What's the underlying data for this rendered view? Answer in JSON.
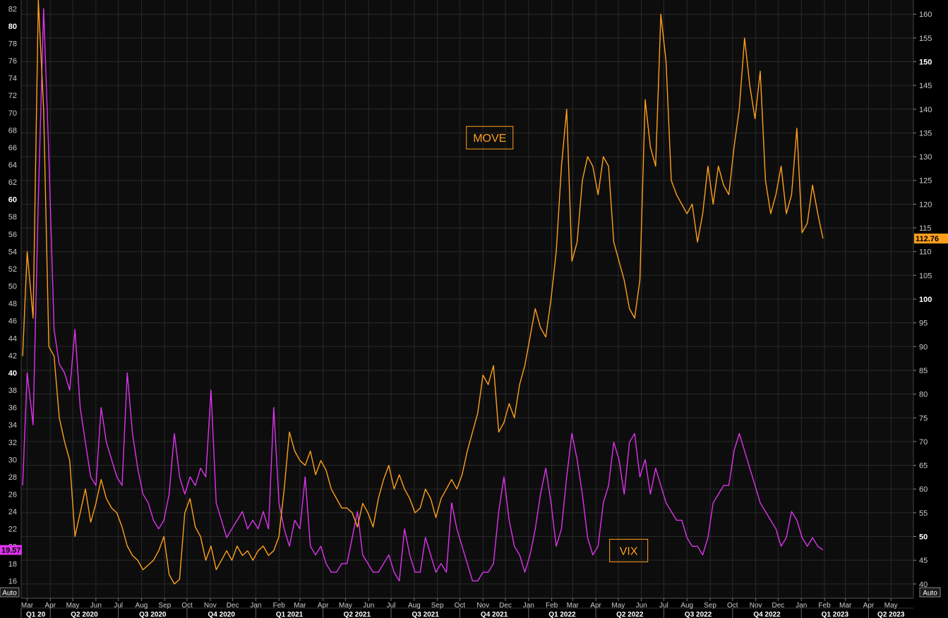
{
  "chart_data": {
    "type": "line",
    "title": "",
    "colors": {
      "vix": "#dd33ee",
      "move": "#ff9f1c",
      "background": "#0d0d0d",
      "grid": "#2a2a2a"
    },
    "left_axis": {
      "ylim": [
        14,
        83
      ],
      "ticks": [
        16,
        18,
        20,
        22,
        24,
        26,
        28,
        30,
        32,
        34,
        36,
        38,
        40,
        42,
        44,
        46,
        48,
        50,
        52,
        54,
        56,
        58,
        60,
        62,
        64,
        66,
        68,
        70,
        72,
        74,
        76,
        78,
        80,
        82
      ],
      "bold_ticks": [
        40,
        60,
        80
      ],
      "last_value_label": "19.57",
      "auto_label": "Auto"
    },
    "right_axis": {
      "ylim": [
        37,
        163
      ],
      "ticks": [
        40,
        45,
        50,
        55,
        60,
        65,
        70,
        75,
        80,
        85,
        90,
        95,
        100,
        105,
        110,
        115,
        120,
        125,
        130,
        135,
        140,
        145,
        150,
        155,
        160
      ],
      "bold_ticks": [
        50,
        100,
        150
      ],
      "last_value_label": "112.76",
      "auto_label": "Auto"
    },
    "x_axis": {
      "months": [
        "Mar",
        "Apr",
        "May",
        "Jun",
        "Jul",
        "Aug",
        "Sep",
        "Oct",
        "Nov",
        "Dec",
        "Jan",
        "Feb",
        "Mar",
        "Apr",
        "May",
        "Jun",
        "Jul",
        "Aug",
        "Sep",
        "Oct",
        "Nov",
        "Dec",
        "Jan",
        "Feb",
        "Mar",
        "Apr",
        "May",
        "Jun",
        "Jul",
        "Aug",
        "Sep",
        "Oct",
        "Nov",
        "Dec",
        "Jan",
        "Feb",
        "Mar",
        "Apr",
        "May"
      ],
      "month_starts": [
        "2020-03",
        "2020-04",
        "2020-05",
        "2020-06",
        "2020-07",
        "2020-08",
        "2020-09",
        "2020-10",
        "2020-11",
        "2020-12",
        "2021-01",
        "2021-02",
        "2021-03",
        "2021-04",
        "2021-05",
        "2021-06",
        "2021-07",
        "2021-08",
        "2021-09",
        "2021-10",
        "2021-11",
        "2021-12",
        "2022-01",
        "2022-02",
        "2022-03",
        "2022-04",
        "2022-05",
        "2022-06",
        "2022-07",
        "2022-08",
        "2022-09",
        "2022-10",
        "2022-11",
        "2022-12",
        "2023-01",
        "2023-02",
        "2023-03",
        "2023-04",
        "2023-05"
      ],
      "quarters": [
        {
          "label": "Q1 20",
          "start": "2020-01"
        },
        {
          "label": "Q2 2020",
          "start": "2020-04"
        },
        {
          "label": "Q3 2020",
          "start": "2020-07"
        },
        {
          "label": "Q4 2020",
          "start": "2020-10"
        },
        {
          "label": "Q1 2021",
          "start": "2021-01"
        },
        {
          "label": "Q2 2021",
          "start": "2021-04"
        },
        {
          "label": "Q3 2021",
          "start": "2021-07"
        },
        {
          "label": "Q4 2021",
          "start": "2021-10"
        },
        {
          "label": "Q1 2022",
          "start": "2022-01"
        },
        {
          "label": "Q2 2022",
          "start": "2022-04"
        },
        {
          "label": "Q3 2022",
          "start": "2022-07"
        },
        {
          "label": "Q4 2022",
          "start": "2022-10"
        },
        {
          "label": "Q1 2023",
          "start": "2023-01"
        },
        {
          "label": "Q2 2023",
          "start": "2023-04"
        }
      ],
      "range": [
        "2020-02-22",
        "2023-05-31"
      ]
    },
    "annotations": [
      {
        "text": "MOVE",
        "series": "move",
        "date": "2021-11-10",
        "value": 134
      },
      {
        "text": "VIX",
        "series": "vix",
        "date": "2022-05-15",
        "value": 19.5
      }
    ],
    "series": [
      {
        "name": "VIX",
        "axis": "left",
        "color": "#dd33ee",
        "x": [
          "2020-02-24",
          "2020-03-01",
          "2020-03-09",
          "2020-03-16",
          "2020-03-23",
          "2020-03-30",
          "2020-04-06",
          "2020-04-13",
          "2020-04-20",
          "2020-04-27",
          "2020-05-04",
          "2020-05-11",
          "2020-05-18",
          "2020-05-25",
          "2020-06-01",
          "2020-06-08",
          "2020-06-15",
          "2020-06-22",
          "2020-06-29",
          "2020-07-06",
          "2020-07-13",
          "2020-07-20",
          "2020-07-27",
          "2020-08-03",
          "2020-08-10",
          "2020-08-17",
          "2020-08-24",
          "2020-08-31",
          "2020-09-07",
          "2020-09-14",
          "2020-09-21",
          "2020-09-28",
          "2020-10-05",
          "2020-10-12",
          "2020-10-19",
          "2020-10-26",
          "2020-11-02",
          "2020-11-09",
          "2020-11-16",
          "2020-11-23",
          "2020-11-30",
          "2020-12-07",
          "2020-12-14",
          "2020-12-21",
          "2020-12-28",
          "2021-01-04",
          "2021-01-11",
          "2021-01-18",
          "2021-01-25",
          "2021-02-01",
          "2021-02-08",
          "2021-02-15",
          "2021-02-22",
          "2021-03-01",
          "2021-03-08",
          "2021-03-15",
          "2021-03-22",
          "2021-03-29",
          "2021-04-05",
          "2021-04-12",
          "2021-04-19",
          "2021-04-26",
          "2021-05-03",
          "2021-05-10",
          "2021-05-17",
          "2021-05-24",
          "2021-05-31",
          "2021-06-07",
          "2021-06-14",
          "2021-06-21",
          "2021-06-28",
          "2021-07-05",
          "2021-07-12",
          "2021-07-19",
          "2021-07-26",
          "2021-08-02",
          "2021-08-09",
          "2021-08-16",
          "2021-08-23",
          "2021-08-30",
          "2021-09-06",
          "2021-09-13",
          "2021-09-20",
          "2021-09-27",
          "2021-10-04",
          "2021-10-11",
          "2021-10-18",
          "2021-10-25",
          "2021-11-01",
          "2021-11-08",
          "2021-11-15",
          "2021-11-22",
          "2021-11-29",
          "2021-12-06",
          "2021-12-13",
          "2021-12-20",
          "2021-12-27",
          "2022-01-03",
          "2022-01-10",
          "2022-01-17",
          "2022-01-24",
          "2022-01-31",
          "2022-02-07",
          "2022-02-14",
          "2022-02-21",
          "2022-02-28",
          "2022-03-07",
          "2022-03-14",
          "2022-03-21",
          "2022-03-28",
          "2022-04-04",
          "2022-04-11",
          "2022-04-18",
          "2022-04-25",
          "2022-05-02",
          "2022-05-09",
          "2022-05-16",
          "2022-05-23",
          "2022-05-30",
          "2022-06-06",
          "2022-06-13",
          "2022-06-20",
          "2022-06-27",
          "2022-07-04",
          "2022-07-11",
          "2022-07-18",
          "2022-07-25",
          "2022-08-01",
          "2022-08-08",
          "2022-08-15",
          "2022-08-22",
          "2022-08-29",
          "2022-09-05",
          "2022-09-12",
          "2022-09-19",
          "2022-09-26",
          "2022-10-03",
          "2022-10-10",
          "2022-10-17",
          "2022-10-24",
          "2022-10-31",
          "2022-11-07",
          "2022-11-14",
          "2022-11-21",
          "2022-11-28",
          "2022-12-05",
          "2022-12-12",
          "2022-12-19",
          "2022-12-26",
          "2023-01-02",
          "2023-01-09",
          "2023-01-16",
          "2023-01-23",
          "2023-01-30"
        ],
        "values": [
          27,
          40,
          34,
          60,
          82,
          65,
          45,
          41,
          40,
          38,
          45,
          36,
          32,
          28,
          27,
          36,
          32,
          30,
          28,
          27,
          40,
          33,
          29,
          26,
          25,
          23,
          22,
          23,
          26,
          33,
          28,
          26,
          28,
          27,
          29,
          28,
          38,
          25,
          23,
          21,
          22,
          23,
          24,
          22,
          23,
          22,
          24,
          22,
          36,
          25,
          22,
          20,
          23,
          22,
          28,
          20,
          19,
          20,
          18,
          17,
          17,
          18,
          18,
          21,
          24,
          19,
          18,
          17,
          17,
          18,
          19,
          17,
          16,
          22,
          19,
          17,
          17,
          21,
          19,
          17,
          18,
          17,
          25,
          22,
          20,
          18,
          16,
          16,
          17,
          17,
          18,
          24,
          28,
          23,
          20,
          19,
          17,
          19,
          22,
          26,
          29,
          25,
          20,
          22,
          28,
          33,
          30,
          26,
          21,
          19,
          20,
          25,
          27,
          32,
          30,
          26,
          32,
          33,
          28,
          30,
          26,
          29,
          27,
          25,
          24,
          23,
          23,
          21,
          20,
          20,
          19,
          21,
          25,
          26,
          27,
          27,
          31,
          33,
          31,
          29,
          27,
          25,
          24,
          23,
          22,
          20,
          21,
          24,
          23,
          21,
          20,
          21,
          20,
          19.57
        ]
      },
      {
        "name": "MOVE",
        "axis": "right",
        "color": "#ff9f1c",
        "x": [
          "2020-02-24",
          "2020-03-01",
          "2020-03-09",
          "2020-03-16",
          "2020-03-23",
          "2020-03-30",
          "2020-04-06",
          "2020-04-13",
          "2020-04-20",
          "2020-04-27",
          "2020-05-04",
          "2020-05-11",
          "2020-05-18",
          "2020-05-25",
          "2020-06-01",
          "2020-06-08",
          "2020-06-15",
          "2020-06-22",
          "2020-06-29",
          "2020-07-06",
          "2020-07-13",
          "2020-07-20",
          "2020-07-27",
          "2020-08-03",
          "2020-08-10",
          "2020-08-17",
          "2020-08-24",
          "2020-08-31",
          "2020-09-07",
          "2020-09-14",
          "2020-09-21",
          "2020-09-28",
          "2020-10-05",
          "2020-10-12",
          "2020-10-19",
          "2020-10-26",
          "2020-11-02",
          "2020-11-09",
          "2020-11-16",
          "2020-11-23",
          "2020-11-30",
          "2020-12-07",
          "2020-12-14",
          "2020-12-21",
          "2020-12-28",
          "2021-01-04",
          "2021-01-11",
          "2021-01-18",
          "2021-01-25",
          "2021-02-01",
          "2021-02-08",
          "2021-02-15",
          "2021-02-22",
          "2021-03-01",
          "2021-03-08",
          "2021-03-15",
          "2021-03-22",
          "2021-03-29",
          "2021-04-05",
          "2021-04-12",
          "2021-04-19",
          "2021-04-26",
          "2021-05-03",
          "2021-05-10",
          "2021-05-17",
          "2021-05-24",
          "2021-05-31",
          "2021-06-07",
          "2021-06-14",
          "2021-06-21",
          "2021-06-28",
          "2021-07-05",
          "2021-07-12",
          "2021-07-19",
          "2021-07-26",
          "2021-08-02",
          "2021-08-09",
          "2021-08-16",
          "2021-08-23",
          "2021-08-30",
          "2021-09-06",
          "2021-09-13",
          "2021-09-20",
          "2021-09-27",
          "2021-10-04",
          "2021-10-11",
          "2021-10-18",
          "2021-10-25",
          "2021-11-01",
          "2021-11-08",
          "2021-11-15",
          "2021-11-22",
          "2021-11-29",
          "2021-12-06",
          "2021-12-13",
          "2021-12-20",
          "2021-12-27",
          "2022-01-03",
          "2022-01-10",
          "2022-01-17",
          "2022-01-24",
          "2022-01-31",
          "2022-02-07",
          "2022-02-14",
          "2022-02-21",
          "2022-02-28",
          "2022-03-07",
          "2022-03-14",
          "2022-03-21",
          "2022-03-28",
          "2022-04-04",
          "2022-04-11",
          "2022-04-18",
          "2022-04-25",
          "2022-05-02",
          "2022-05-09",
          "2022-05-16",
          "2022-05-23",
          "2022-05-30",
          "2022-06-06",
          "2022-06-13",
          "2022-06-20",
          "2022-06-27",
          "2022-07-04",
          "2022-07-11",
          "2022-07-18",
          "2022-07-25",
          "2022-08-01",
          "2022-08-08",
          "2022-08-15",
          "2022-08-22",
          "2022-08-29",
          "2022-09-05",
          "2022-09-12",
          "2022-09-19",
          "2022-09-26",
          "2022-10-03",
          "2022-10-10",
          "2022-10-17",
          "2022-10-24",
          "2022-10-31",
          "2022-11-07",
          "2022-11-14",
          "2022-11-21",
          "2022-11-28",
          "2022-12-05",
          "2022-12-12",
          "2022-12-19",
          "2022-12-26",
          "2023-01-02",
          "2023-01-09",
          "2023-01-16",
          "2023-01-23",
          "2023-01-30"
        ],
        "values": [
          88,
          110,
          96,
          163,
          140,
          90,
          88,
          75,
          70,
          66,
          50,
          55,
          60,
          53,
          57,
          62,
          58,
          56,
          55,
          52,
          48,
          46,
          45,
          43,
          44,
          45,
          47,
          50,
          42,
          40,
          41,
          55,
          58,
          52,
          50,
          45,
          48,
          43,
          45,
          47,
          45,
          48,
          46,
          47,
          45,
          47,
          48,
          46,
          47,
          50,
          60,
          72,
          68,
          66,
          65,
          68,
          63,
          66,
          64,
          60,
          58,
          56,
          56,
          55,
          52,
          57,
          55,
          52,
          58,
          62,
          65,
          60,
          63,
          60,
          58,
          55,
          56,
          60,
          58,
          54,
          58,
          60,
          62,
          60,
          63,
          68,
          72,
          76,
          84,
          82,
          86,
          72,
          74,
          78,
          75,
          82,
          86,
          92,
          98,
          94,
          92,
          100,
          110,
          128,
          140,
          108,
          112,
          125,
          130,
          128,
          122,
          130,
          128,
          112,
          108,
          104,
          98,
          96,
          104,
          142,
          132,
          128,
          160,
          150,
          125,
          122,
          120,
          118,
          120,
          112,
          118,
          128,
          120,
          128,
          124,
          122,
          132,
          140,
          155,
          145,
          138,
          148,
          125,
          118,
          122,
          128,
          118,
          122,
          136,
          114,
          116,
          124,
          118,
          112.76
        ]
      }
    ]
  }
}
